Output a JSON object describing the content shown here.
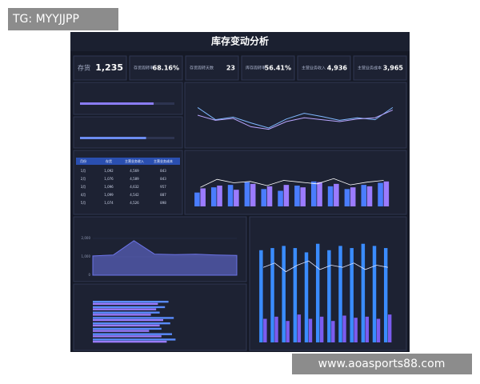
{
  "tag": "TG: MYYJJPP",
  "watermark": "www.aoasports88.com",
  "title": "库存变动分析",
  "kpis": [
    {
      "label": "存货",
      "value": "1,235"
    },
    {
      "label": "存货周转率",
      "value": "68.16%"
    },
    {
      "label": "存货周转天数",
      "value": "23"
    },
    {
      "label": "库存周转率",
      "value": "56.41%"
    },
    {
      "label": "主营业务收入",
      "value": "4,936"
    },
    {
      "label": "主营业务成本",
      "value": "3,965"
    }
  ],
  "progress": {
    "xlim": [
      0,
      100
    ],
    "bars": [
      {
        "value": 78,
        "color": "#8a7cf5"
      },
      {
        "value": 70,
        "color": "#6c8cf0"
      }
    ]
  },
  "table": {
    "header": [
      "月份",
      "存货",
      "主营业务收入",
      "主营业务成本"
    ],
    "rows": [
      [
        "1月",
        "1,092",
        "4,569",
        "843"
      ],
      [
        "2月",
        "1,076",
        "4,589",
        "843"
      ],
      [
        "3月",
        "1,096",
        "4,632",
        "957"
      ],
      [
        "4月",
        "1,099",
        "4,542",
        "887"
      ],
      [
        "5月",
        "1,074",
        "4,526",
        "898"
      ]
    ]
  },
  "charts": [
    {
      "type": "line",
      "ylim": [
        60,
        130
      ],
      "series": [
        {
          "color": "#7fb8ff",
          "values": [
            112,
            93,
            97,
            88,
            80,
            94,
            103,
            98,
            92,
            96,
            93,
            112
          ]
        },
        {
          "color": "#b9a6ff",
          "values": [
            100,
            92,
            95,
            82,
            78,
            90,
            96,
            93,
            90,
            94,
            96,
            108
          ]
        }
      ]
    },
    {
      "type": "bar",
      "ylim": [
        0,
        120
      ],
      "series": [
        {
          "color": "#4a7dff",
          "values": [
            40,
            55,
            62,
            70,
            50,
            45,
            60,
            72,
            58,
            50,
            62,
            68
          ]
        },
        {
          "color": "#9b7bff",
          "values": [
            52,
            60,
            48,
            65,
            58,
            62,
            55,
            70,
            65,
            55,
            58,
            72
          ]
        },
        {
          "color": "#ffffff",
          "kind": "line",
          "values": [
            55,
            78,
            68,
            72,
            60,
            75,
            70,
            65,
            80,
            62,
            70,
            75
          ]
        }
      ]
    },
    {
      "type": "area",
      "ylim": [
        0,
        2000
      ],
      "yticks": [
        0,
        {
          "value": 1000,
          "label": "1,000"
        },
        {
          "value": 2000,
          "label": "2,000"
        }
      ],
      "color": "#6c74e8",
      "values": [
        1050,
        1100,
        1879,
        1150,
        1120,
        1140,
        1100,
        1080
      ]
    },
    {
      "type": "hbar",
      "xlim": [
        0,
        8000
      ],
      "series": [
        {
          "color": "#5a8cff",
          "values": [
            4300,
            4100,
            3800,
            4600,
            4400,
            3900,
            4500,
            4700
          ]
        },
        {
          "color": "#9b7bff",
          "values": [
            3700,
            3600,
            3300,
            4000,
            3800,
            3200,
            3900,
            4200
          ]
        }
      ]
    },
    {
      "type": "bar",
      "ylim": [
        0,
        5000
      ],
      "series": [
        {
          "color": "#3a8cff",
          "values": [
            4300,
            4400,
            4500,
            4400,
            4200,
            4600,
            4300,
            4500,
            4400,
            4600,
            4500,
            4400
          ]
        },
        {
          "color": "#7b5cf0",
          "values": [
            1100,
            1200,
            1000,
            1300,
            1100,
            1200,
            1000,
            1250,
            1150,
            1200,
            1100,
            1300
          ]
        },
        {
          "color": "#e0e6ff",
          "kind": "line",
          "values": [
            3500,
            3700,
            3300,
            3600,
            3800,
            3400,
            3600,
            3500,
            3700,
            3400,
            3600,
            3500
          ]
        }
      ]
    }
  ]
}
